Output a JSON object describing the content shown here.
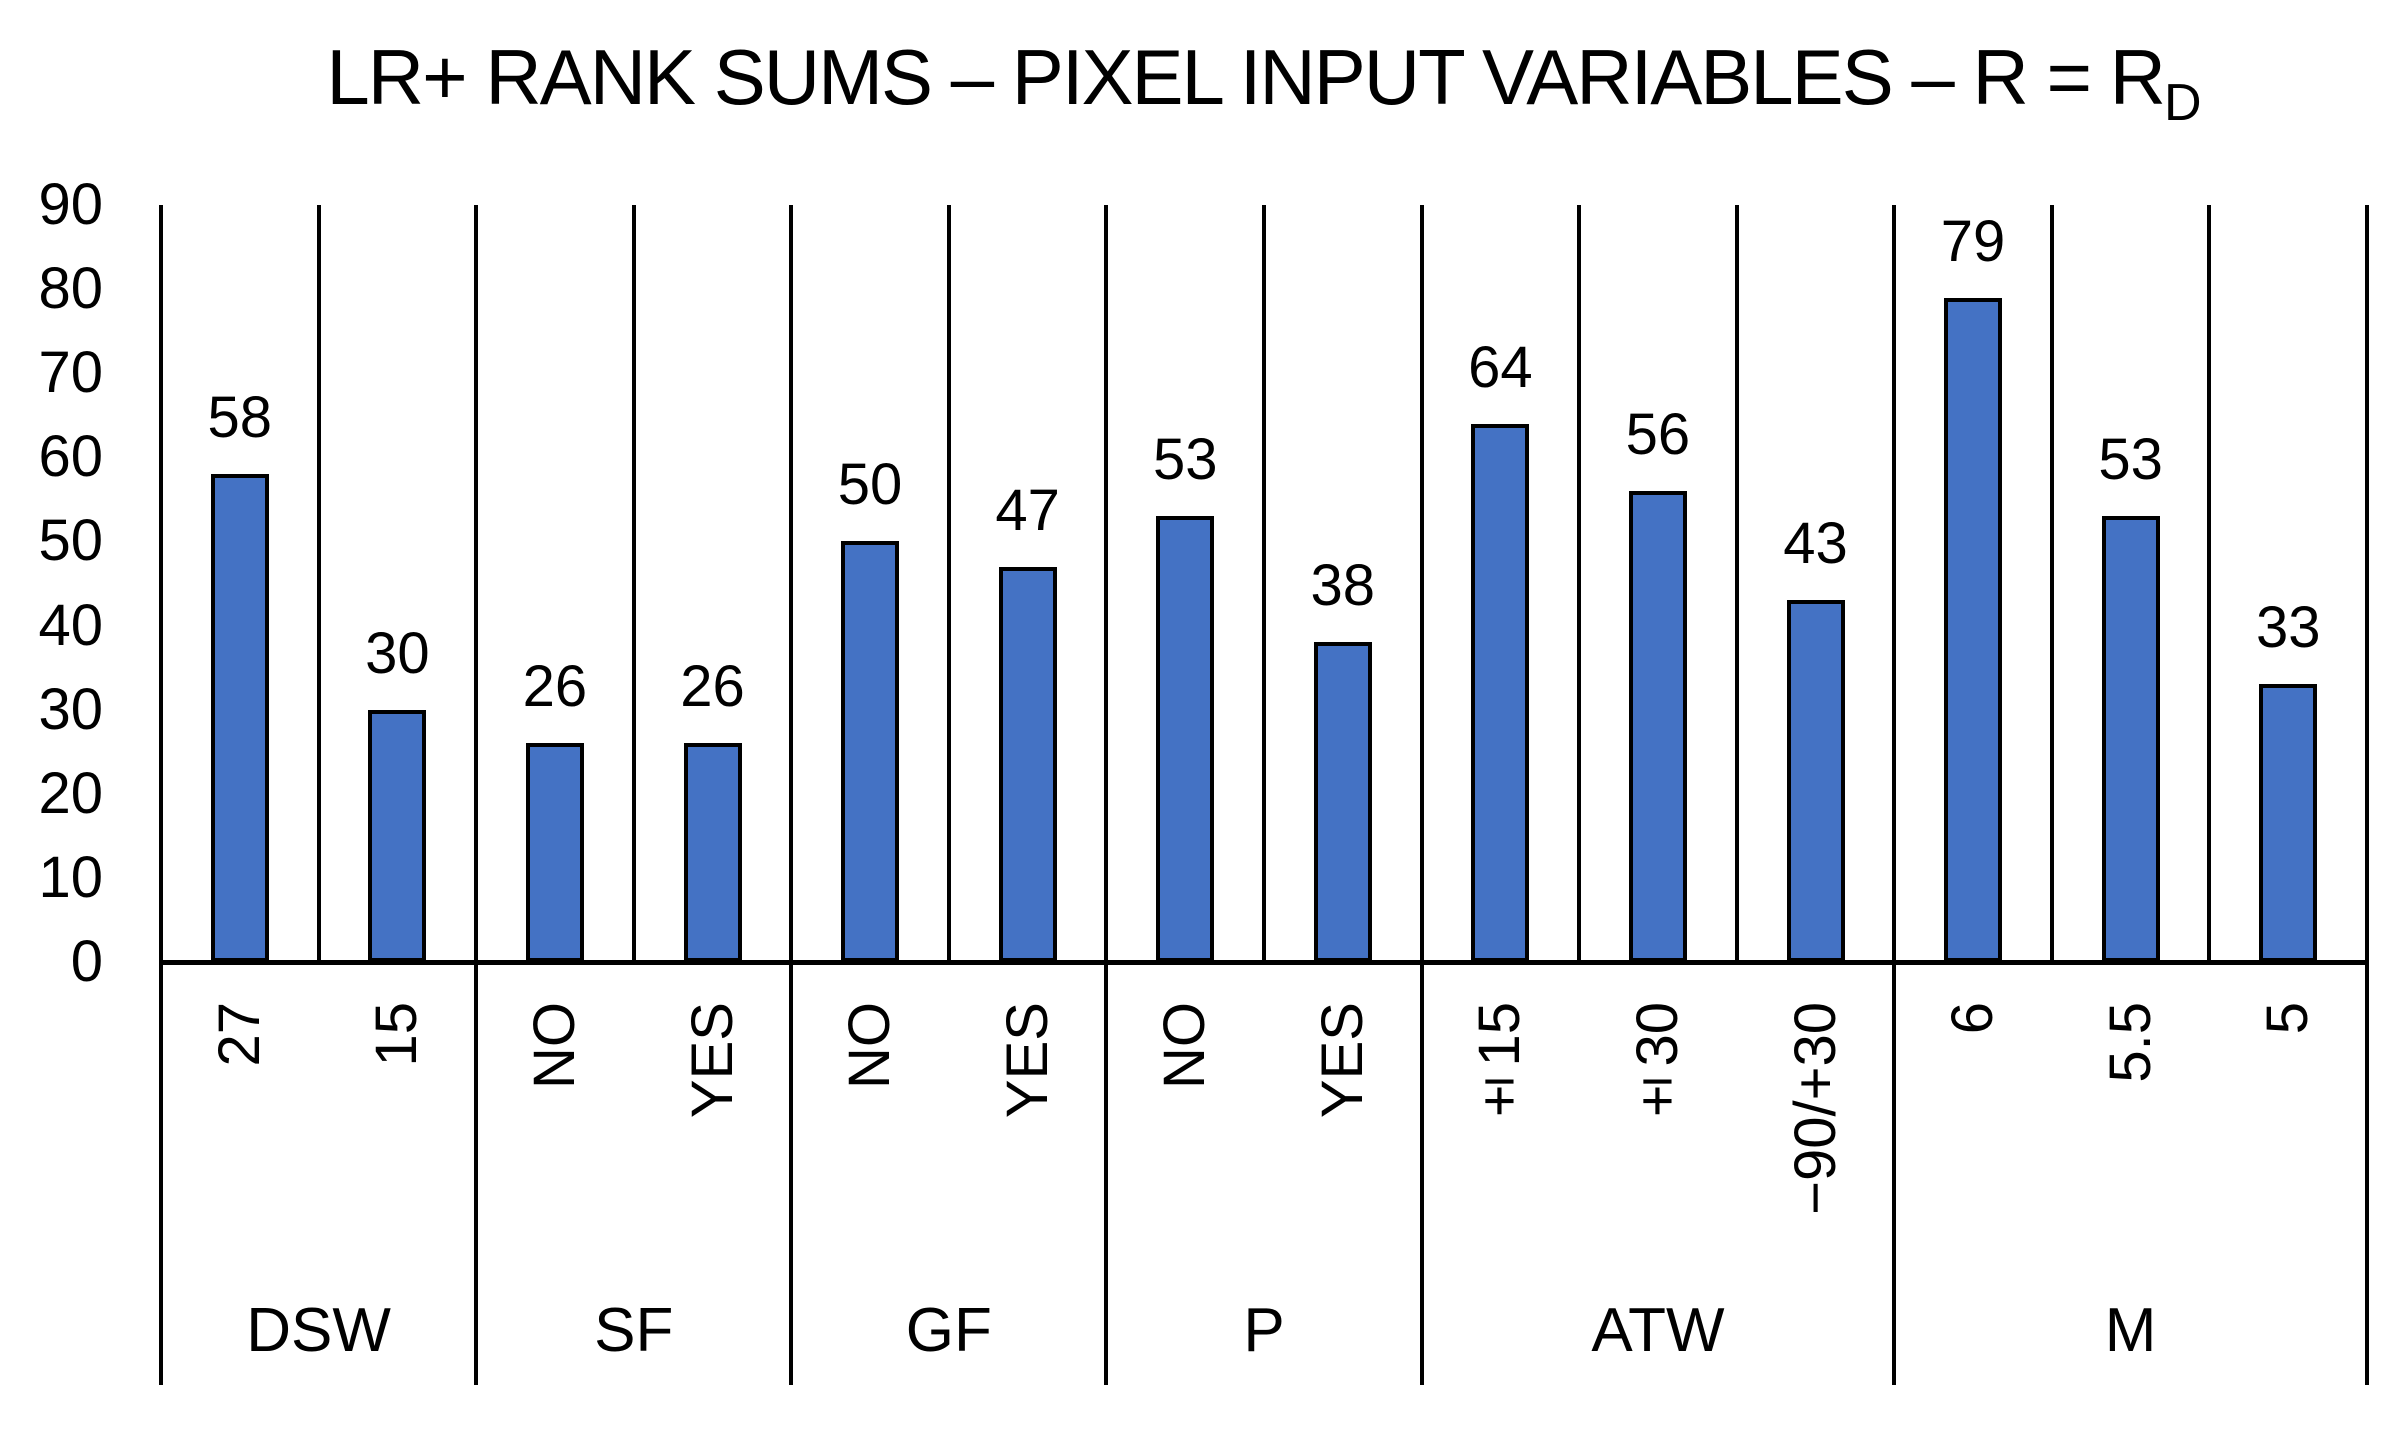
{
  "title": {
    "text": "LR+ RANK SUMS – PIXEL INPUT VARIABLES – R = R",
    "subscript": "D"
  },
  "chart_data": {
    "type": "bar",
    "title": "LR+ RANK SUMS – PIXEL INPUT VARIABLES – R = R_D",
    "xlabel": "",
    "ylabel": "",
    "ylim": [
      0,
      90
    ],
    "y_ticks": [
      0,
      10,
      20,
      30,
      40,
      50,
      60,
      70,
      80,
      90
    ],
    "grid": "vertical category separators, no horizontal gridlines",
    "legend": "none",
    "bar_color": "#4472C4",
    "bar_border_color": "#000000",
    "axis_color": "#000000",
    "groups": [
      {
        "label": "DSW",
        "bars": [
          {
            "label": "27",
            "value": 58
          },
          {
            "label": "15",
            "value": 30
          }
        ]
      },
      {
        "label": "SF",
        "bars": [
          {
            "label": "NO",
            "value": 26
          },
          {
            "label": "YES",
            "value": 26
          }
        ]
      },
      {
        "label": "GF",
        "bars": [
          {
            "label": "NO",
            "value": 50
          },
          {
            "label": "YES",
            "value": 47
          }
        ]
      },
      {
        "label": "P",
        "bars": [
          {
            "label": "NO",
            "value": 53
          },
          {
            "label": "YES",
            "value": 38
          }
        ]
      },
      {
        "label": "ATW",
        "bars": [
          {
            "label": "±15",
            "value": 64
          },
          {
            "label": "±30",
            "value": 56
          },
          {
            "label": "−90/+30",
            "value": 43
          }
        ]
      },
      {
        "label": "M",
        "bars": [
          {
            "label": "6",
            "value": 79
          },
          {
            "label": "5.5",
            "value": 53
          },
          {
            "label": "5",
            "value": 33
          }
        ]
      }
    ]
  }
}
